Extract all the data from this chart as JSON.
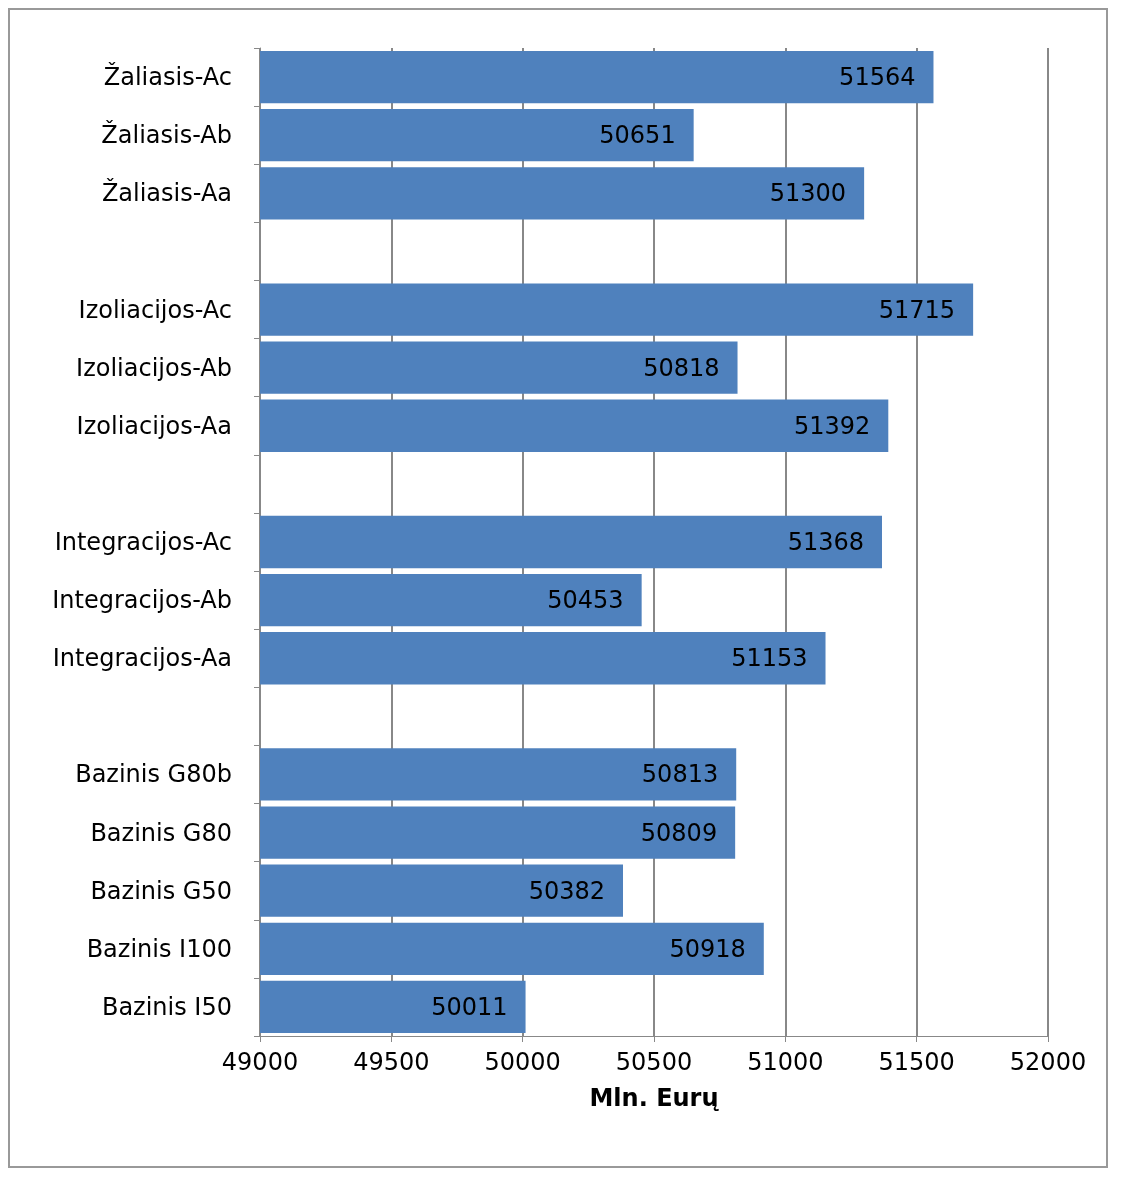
{
  "chart_data": {
    "type": "bar",
    "orientation": "horizontal",
    "xlabel": "Mln. Eurų",
    "categories": [
      "Žaliasis-Ac",
      "Žaliasis-Ab",
      "Žaliasis-Aa",
      null,
      "Izoliacijos-Ac",
      "Izoliacijos-Ab",
      "Izoliacijos-Aa",
      null,
      "Integracijos-Ac",
      "Integracijos-Ab",
      "Integracijos-Aa",
      null,
      "Bazinis G80b",
      "Bazinis G80",
      "Bazinis G50",
      "Bazinis I100",
      "Bazinis I50"
    ],
    "values": [
      51564,
      50651,
      51300,
      null,
      51715,
      50818,
      51392,
      null,
      51368,
      50453,
      51153,
      null,
      50813,
      50809,
      50382,
      50918,
      50011
    ],
    "color": "#4f81bd",
    "xlim": [
      49000,
      52000
    ],
    "xticks": [
      49000,
      49500,
      50000,
      50500,
      51000,
      51500,
      52000
    ],
    "grid": "x",
    "data_labels": true
  }
}
